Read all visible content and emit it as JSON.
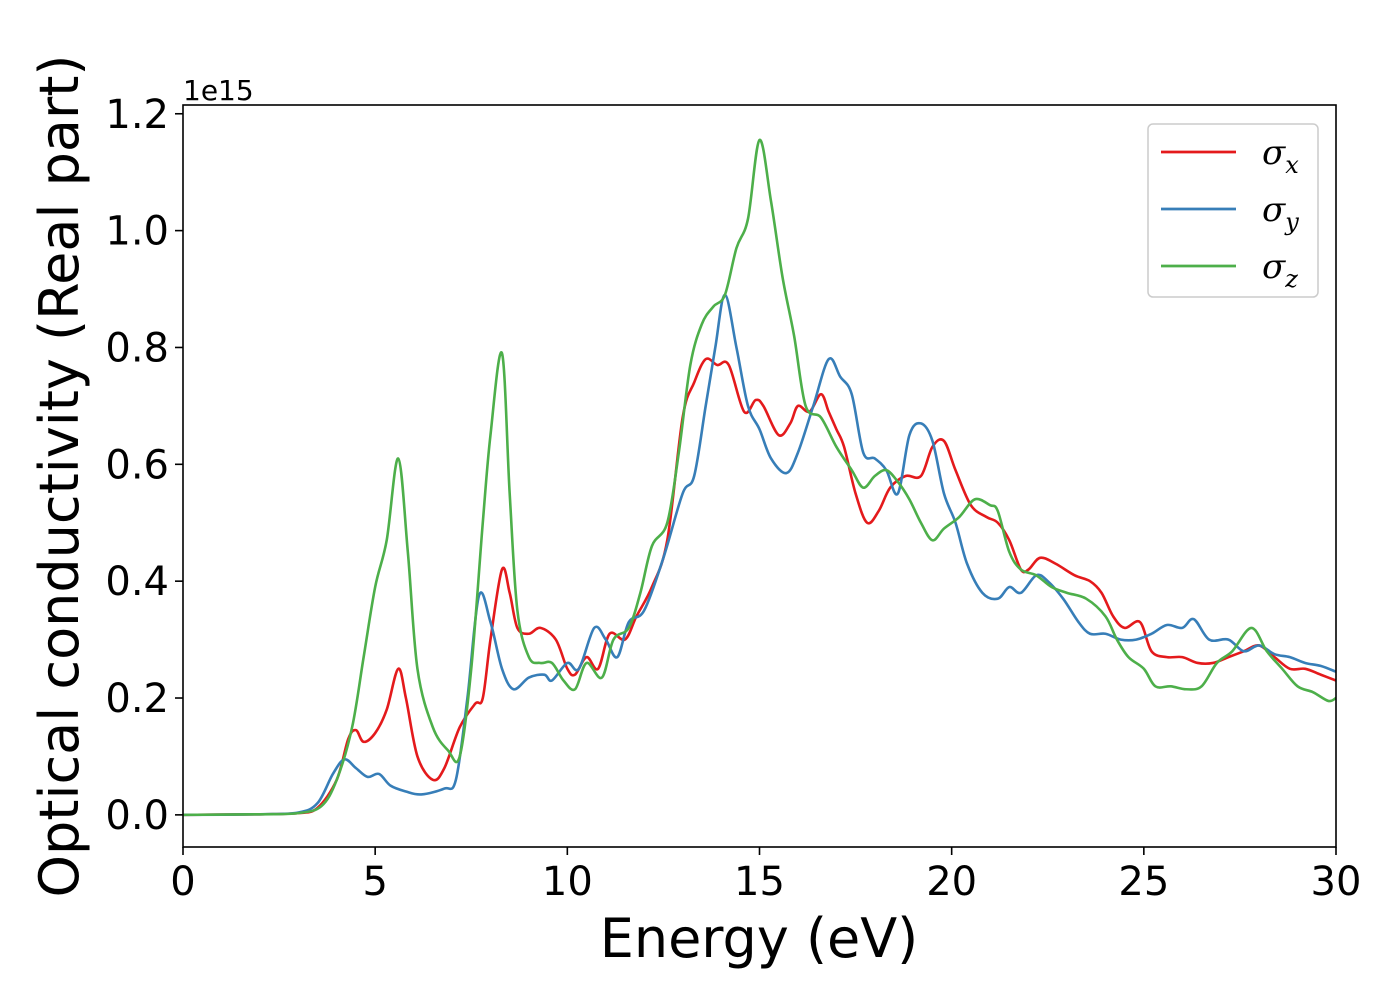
{
  "chart_data": {
    "type": "line",
    "title": "",
    "xlabel": "Energy (eV)",
    "ylabel": "Optical conductivity (Real part)",
    "y_offset_text": "1e15",
    "y_multiplier": 1000000000000000.0,
    "xlim": [
      0,
      30
    ],
    "ylim": [
      -0.055,
      1.215
    ],
    "x_ticks": [
      0,
      5,
      10,
      15,
      20,
      25,
      30
    ],
    "x_tick_labels": [
      "0",
      "5",
      "10",
      "15",
      "20",
      "25",
      "30"
    ],
    "y_ticks": [
      0.0,
      0.2,
      0.4,
      0.6,
      0.8,
      1.0,
      1.2
    ],
    "y_tick_labels": [
      "0.0",
      "0.2",
      "0.4",
      "0.6",
      "0.8",
      "1.0",
      "1.2"
    ],
    "grid": false,
    "legend_position": "top-right",
    "series": [
      {
        "name": "σx",
        "symbol": "σ",
        "subscript": "x",
        "color": "#e41a1c",
        "points": [
          [
            0,
            0
          ],
          [
            2,
            0.001
          ],
          [
            3,
            0.003
          ],
          [
            3.5,
            0.012
          ],
          [
            4.0,
            0.06
          ],
          [
            4.3,
            0.13
          ],
          [
            4.5,
            0.145
          ],
          [
            4.7,
            0.125
          ],
          [
            5.0,
            0.14
          ],
          [
            5.3,
            0.18
          ],
          [
            5.6,
            0.25
          ],
          [
            5.8,
            0.2
          ],
          [
            6.1,
            0.1
          ],
          [
            6.5,
            0.06
          ],
          [
            6.8,
            0.08
          ],
          [
            7.2,
            0.15
          ],
          [
            7.6,
            0.19
          ],
          [
            7.8,
            0.2
          ],
          [
            8.0,
            0.3
          ],
          [
            8.3,
            0.42
          ],
          [
            8.5,
            0.38
          ],
          [
            8.7,
            0.32
          ],
          [
            9.0,
            0.31
          ],
          [
            9.3,
            0.32
          ],
          [
            9.7,
            0.3
          ],
          [
            10.0,
            0.25
          ],
          [
            10.2,
            0.24
          ],
          [
            10.5,
            0.27
          ],
          [
            10.8,
            0.25
          ],
          [
            11.1,
            0.31
          ],
          [
            11.5,
            0.3
          ],
          [
            11.8,
            0.34
          ],
          [
            12.2,
            0.39
          ],
          [
            12.6,
            0.47
          ],
          [
            13.0,
            0.68
          ],
          [
            13.3,
            0.74
          ],
          [
            13.6,
            0.78
          ],
          [
            13.9,
            0.77
          ],
          [
            14.2,
            0.77
          ],
          [
            14.6,
            0.69
          ],
          [
            14.9,
            0.71
          ],
          [
            15.1,
            0.7
          ],
          [
            15.5,
            0.65
          ],
          [
            15.8,
            0.67
          ],
          [
            16.0,
            0.7
          ],
          [
            16.3,
            0.69
          ],
          [
            16.6,
            0.72
          ],
          [
            16.8,
            0.69
          ],
          [
            17.0,
            0.66
          ],
          [
            17.2,
            0.63
          ],
          [
            17.5,
            0.55
          ],
          [
            17.8,
            0.5
          ],
          [
            18.1,
            0.52
          ],
          [
            18.4,
            0.56
          ],
          [
            18.8,
            0.58
          ],
          [
            19.2,
            0.58
          ],
          [
            19.5,
            0.63
          ],
          [
            19.8,
            0.64
          ],
          [
            20.1,
            0.59
          ],
          [
            20.5,
            0.53
          ],
          [
            20.9,
            0.51
          ],
          [
            21.2,
            0.5
          ],
          [
            21.5,
            0.47
          ],
          [
            21.8,
            0.42
          ],
          [
            22.0,
            0.42
          ],
          [
            22.3,
            0.44
          ],
          [
            22.7,
            0.43
          ],
          [
            23.2,
            0.41
          ],
          [
            23.6,
            0.4
          ],
          [
            23.9,
            0.38
          ],
          [
            24.2,
            0.34
          ],
          [
            24.5,
            0.32
          ],
          [
            24.9,
            0.33
          ],
          [
            25.2,
            0.28
          ],
          [
            25.6,
            0.27
          ],
          [
            26.0,
            0.27
          ],
          [
            26.4,
            0.26
          ],
          [
            26.8,
            0.26
          ],
          [
            27.2,
            0.27
          ],
          [
            27.6,
            0.28
          ],
          [
            28.0,
            0.29
          ],
          [
            28.4,
            0.27
          ],
          [
            28.8,
            0.25
          ],
          [
            29.2,
            0.25
          ],
          [
            29.6,
            0.24
          ],
          [
            30.0,
            0.23
          ]
        ]
      },
      {
        "name": "σy",
        "symbol": "σ",
        "subscript": "y",
        "color": "#377eb8",
        "points": [
          [
            0,
            0
          ],
          [
            2,
            0.001
          ],
          [
            3,
            0.004
          ],
          [
            3.5,
            0.02
          ],
          [
            3.9,
            0.07
          ],
          [
            4.2,
            0.095
          ],
          [
            4.5,
            0.08
          ],
          [
            4.8,
            0.065
          ],
          [
            5.1,
            0.07
          ],
          [
            5.4,
            0.05
          ],
          [
            5.8,
            0.04
          ],
          [
            6.2,
            0.035
          ],
          [
            6.8,
            0.045
          ],
          [
            7.1,
            0.06
          ],
          [
            7.4,
            0.2
          ],
          [
            7.7,
            0.375
          ],
          [
            8.0,
            0.33
          ],
          [
            8.3,
            0.25
          ],
          [
            8.6,
            0.215
          ],
          [
            9.0,
            0.235
          ],
          [
            9.4,
            0.24
          ],
          [
            9.6,
            0.23
          ],
          [
            10.0,
            0.26
          ],
          [
            10.3,
            0.25
          ],
          [
            10.7,
            0.32
          ],
          [
            11.0,
            0.3
          ],
          [
            11.3,
            0.27
          ],
          [
            11.6,
            0.33
          ],
          [
            12.0,
            0.35
          ],
          [
            12.5,
            0.44
          ],
          [
            13.0,
            0.55
          ],
          [
            13.3,
            0.58
          ],
          [
            13.6,
            0.7
          ],
          [
            13.85,
            0.8
          ],
          [
            14.1,
            0.89
          ],
          [
            14.4,
            0.8
          ],
          [
            14.7,
            0.7
          ],
          [
            15.0,
            0.66
          ],
          [
            15.3,
            0.61
          ],
          [
            15.7,
            0.585
          ],
          [
            16.0,
            0.62
          ],
          [
            16.4,
            0.7
          ],
          [
            16.8,
            0.78
          ],
          [
            17.1,
            0.75
          ],
          [
            17.4,
            0.72
          ],
          [
            17.7,
            0.62
          ],
          [
            18.0,
            0.61
          ],
          [
            18.3,
            0.59
          ],
          [
            18.6,
            0.55
          ],
          [
            18.9,
            0.65
          ],
          [
            19.2,
            0.67
          ],
          [
            19.5,
            0.64
          ],
          [
            19.8,
            0.55
          ],
          [
            20.1,
            0.5
          ],
          [
            20.4,
            0.43
          ],
          [
            20.8,
            0.38
          ],
          [
            21.2,
            0.37
          ],
          [
            21.5,
            0.39
          ],
          [
            21.8,
            0.38
          ],
          [
            22.2,
            0.41
          ],
          [
            22.5,
            0.4
          ],
          [
            22.9,
            0.37
          ],
          [
            23.3,
            0.33
          ],
          [
            23.6,
            0.31
          ],
          [
            24.0,
            0.31
          ],
          [
            24.4,
            0.3
          ],
          [
            24.8,
            0.3
          ],
          [
            25.2,
            0.31
          ],
          [
            25.6,
            0.325
          ],
          [
            26.0,
            0.32
          ],
          [
            26.3,
            0.335
          ],
          [
            26.7,
            0.3
          ],
          [
            27.2,
            0.3
          ],
          [
            27.6,
            0.28
          ],
          [
            28.0,
            0.29
          ],
          [
            28.4,
            0.275
          ],
          [
            28.8,
            0.27
          ],
          [
            29.2,
            0.26
          ],
          [
            29.6,
            0.255
          ],
          [
            30.0,
            0.245
          ]
        ]
      },
      {
        "name": "σz",
        "symbol": "σ",
        "subscript": "z",
        "color": "#4daf4a",
        "points": [
          [
            0,
            0
          ],
          [
            2,
            0.001
          ],
          [
            3,
            0.003
          ],
          [
            3.6,
            0.015
          ],
          [
            4.0,
            0.06
          ],
          [
            4.4,
            0.15
          ],
          [
            4.7,
            0.27
          ],
          [
            5.0,
            0.39
          ],
          [
            5.3,
            0.47
          ],
          [
            5.6,
            0.61
          ],
          [
            5.85,
            0.45
          ],
          [
            6.1,
            0.25
          ],
          [
            6.5,
            0.15
          ],
          [
            6.9,
            0.11
          ],
          [
            7.2,
            0.1
          ],
          [
            7.5,
            0.25
          ],
          [
            7.8,
            0.5
          ],
          [
            8.0,
            0.65
          ],
          [
            8.3,
            0.79
          ],
          [
            8.5,
            0.55
          ],
          [
            8.7,
            0.35
          ],
          [
            9.0,
            0.27
          ],
          [
            9.3,
            0.26
          ],
          [
            9.6,
            0.26
          ],
          [
            9.9,
            0.23
          ],
          [
            10.2,
            0.215
          ],
          [
            10.5,
            0.26
          ],
          [
            10.9,
            0.235
          ],
          [
            11.2,
            0.3
          ],
          [
            11.6,
            0.32
          ],
          [
            11.9,
            0.38
          ],
          [
            12.2,
            0.46
          ],
          [
            12.6,
            0.5
          ],
          [
            12.9,
            0.62
          ],
          [
            13.2,
            0.77
          ],
          [
            13.5,
            0.84
          ],
          [
            13.8,
            0.87
          ],
          [
            14.1,
            0.89
          ],
          [
            14.4,
            0.97
          ],
          [
            14.7,
            1.02
          ],
          [
            15.0,
            1.155
          ],
          [
            15.3,
            1.05
          ],
          [
            15.6,
            0.92
          ],
          [
            15.9,
            0.82
          ],
          [
            16.2,
            0.7
          ],
          [
            16.6,
            0.68
          ],
          [
            17.0,
            0.63
          ],
          [
            17.4,
            0.59
          ],
          [
            17.7,
            0.56
          ],
          [
            18.0,
            0.58
          ],
          [
            18.3,
            0.59
          ],
          [
            18.6,
            0.57
          ],
          [
            18.9,
            0.54
          ],
          [
            19.2,
            0.5
          ],
          [
            19.5,
            0.47
          ],
          [
            19.8,
            0.49
          ],
          [
            20.2,
            0.51
          ],
          [
            20.6,
            0.54
          ],
          [
            21.0,
            0.53
          ],
          [
            21.2,
            0.52
          ],
          [
            21.5,
            0.45
          ],
          [
            21.8,
            0.42
          ],
          [
            22.2,
            0.41
          ],
          [
            22.6,
            0.39
          ],
          [
            23.0,
            0.38
          ],
          [
            23.5,
            0.37
          ],
          [
            24.0,
            0.34
          ],
          [
            24.3,
            0.3
          ],
          [
            24.6,
            0.27
          ],
          [
            25.0,
            0.25
          ],
          [
            25.3,
            0.22
          ],
          [
            25.7,
            0.22
          ],
          [
            26.1,
            0.215
          ],
          [
            26.5,
            0.22
          ],
          [
            26.9,
            0.26
          ],
          [
            27.3,
            0.28
          ],
          [
            27.8,
            0.32
          ],
          [
            28.2,
            0.28
          ],
          [
            28.6,
            0.25
          ],
          [
            29.0,
            0.22
          ],
          [
            29.4,
            0.21
          ],
          [
            29.8,
            0.195
          ],
          [
            30.0,
            0.2
          ]
        ]
      }
    ]
  }
}
